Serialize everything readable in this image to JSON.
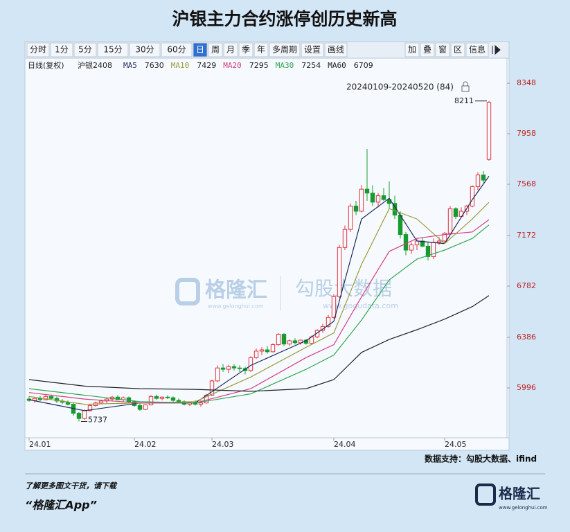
{
  "chart_data": {
    "type": "candlestick",
    "title": "沪银主力合约涨停创历史新高",
    "toolbar_left": [
      "分时",
      "1分",
      "5分",
      "15分",
      "30分",
      "60分",
      "日",
      "周",
      "月",
      "季",
      "年",
      "多周期",
      "设置",
      "画线"
    ],
    "toolbar_right": [
      "加",
      "叠",
      "窗",
      "区",
      "信息"
    ],
    "legend": [
      "日线(复权)",
      "沪银2408"
    ],
    "range_label": "20240109-20240520 (84)",
    "annotations": [
      {
        "label": "8211",
        "index": 83,
        "value": 8211
      },
      {
        "label": "5737",
        "index": 9,
        "value": 5737
      }
    ],
    "watermark": [
      "格隆汇",
      "www.gelonghui.com",
      "勾股大数据",
      "www.gogudata.com"
    ],
    "source": "数据支持：勾股大数据、ifind",
    "footer": [
      "了解更多图文干货，请下载",
      "“格隆汇App”"
    ],
    "logo": [
      "格隆汇",
      "www.gelonghui.com"
    ],
    "up_color": "#e0303a",
    "down_color": "#179a2e",
    "xlim": [
      -0.5,
      86.25
    ],
    "xticks": [
      {
        "value": 0,
        "label": "24.01"
      },
      {
        "value": 19,
        "label": "24.02"
      },
      {
        "value": 33,
        "label": "24.03"
      },
      {
        "value": 55,
        "label": "24.04"
      },
      {
        "value": 75,
        "label": "24.05"
      }
    ],
    "ylim": [
      5611,
      8520
    ],
    "yticks": [
      5996,
      6386,
      6782,
      7172,
      7568,
      7958,
      8348
    ],
    "candles": [
      [
        5910,
        5930,
        5890,
        5900
      ],
      [
        5900,
        5920,
        5880,
        5915
      ],
      [
        5915,
        5935,
        5895,
        5905
      ],
      [
        5905,
        5940,
        5900,
        5930
      ],
      [
        5930,
        5945,
        5905,
        5915
      ],
      [
        5915,
        5930,
        5880,
        5895
      ],
      [
        5895,
        5910,
        5870,
        5885
      ],
      [
        5885,
        5900,
        5860,
        5870
      ],
      [
        5870,
        5880,
        5780,
        5800
      ],
      [
        5800,
        5810,
        5737,
        5760
      ],
      [
        5760,
        5830,
        5750,
        5820
      ],
      [
        5820,
        5870,
        5815,
        5860
      ],
      [
        5860,
        5890,
        5850,
        5880
      ],
      [
        5880,
        5905,
        5870,
        5895
      ],
      [
        5895,
        5920,
        5880,
        5910
      ],
      [
        5910,
        5935,
        5895,
        5925
      ],
      [
        5925,
        5940,
        5900,
        5905
      ],
      [
        5905,
        5930,
        5890,
        5920
      ],
      [
        5920,
        5930,
        5880,
        5890
      ],
      [
        5890,
        5900,
        5850,
        5860
      ],
      [
        5860,
        5880,
        5820,
        5830
      ],
      [
        5830,
        5870,
        5825,
        5865
      ],
      [
        5865,
        5940,
        5860,
        5930
      ],
      [
        5930,
        5945,
        5905,
        5915
      ],
      [
        5915,
        5930,
        5900,
        5925
      ],
      [
        5925,
        5940,
        5910,
        5920
      ],
      [
        5920,
        5930,
        5890,
        5900
      ],
      [
        5900,
        5915,
        5880,
        5890
      ],
      [
        5890,
        5900,
        5860,
        5870
      ],
      [
        5870,
        5890,
        5855,
        5885
      ],
      [
        5885,
        5900,
        5860,
        5870
      ],
      [
        5870,
        5900,
        5850,
        5880
      ],
      [
        5880,
        5950,
        5875,
        5940
      ],
      [
        5940,
        6060,
        5935,
        6050
      ],
      [
        6050,
        6170,
        6040,
        6150
      ],
      [
        6150,
        6180,
        6120,
        6140
      ],
      [
        6140,
        6175,
        6110,
        6160
      ],
      [
        6160,
        6180,
        6130,
        6150
      ],
      [
        6150,
        6170,
        6120,
        6145
      ],
      [
        6145,
        6160,
        6100,
        6130
      ],
      [
        6130,
        6240,
        6120,
        6230
      ],
      [
        6230,
        6300,
        6220,
        6280
      ],
      [
        6280,
        6310,
        6250,
        6290
      ],
      [
        6290,
        6320,
        6260,
        6275
      ],
      [
        6275,
        6340,
        6270,
        6330
      ],
      [
        6330,
        6420,
        6320,
        6410
      ],
      [
        6410,
        6420,
        6320,
        6335
      ],
      [
        6335,
        6370,
        6320,
        6360
      ],
      [
        6360,
        6380,
        6330,
        6345
      ],
      [
        6345,
        6370,
        6330,
        6365
      ],
      [
        6365,
        6375,
        6330,
        6340
      ],
      [
        6340,
        6400,
        6330,
        6390
      ],
      [
        6390,
        6450,
        6380,
        6440
      ],
      [
        6440,
        6490,
        6420,
        6470
      ],
      [
        6470,
        6560,
        6460,
        6540
      ],
      [
        6540,
        6720,
        6530,
        6700
      ],
      [
        6700,
        7100,
        6690,
        7080
      ],
      [
        7080,
        7250,
        7060,
        7220
      ],
      [
        7220,
        7420,
        7200,
        7400
      ],
      [
        7400,
        7440,
        7330,
        7360
      ],
      [
        7360,
        7560,
        7350,
        7530
      ],
      [
        7530,
        7840,
        7440,
        7500
      ],
      [
        7500,
        7560,
        7400,
        7430
      ],
      [
        7430,
        7500,
        7390,
        7480
      ],
      [
        7480,
        7540,
        7440,
        7450
      ],
      [
        7450,
        7590,
        7380,
        7420
      ],
      [
        7420,
        7480,
        7300,
        7330
      ],
      [
        7330,
        7360,
        7150,
        7180
      ],
      [
        7180,
        7200,
        7020,
        7060
      ],
      [
        7060,
        7120,
        7030,
        7100
      ],
      [
        7100,
        7150,
        7060,
        7130
      ],
      [
        7130,
        7160,
        7080,
        7090
      ],
      [
        7090,
        7120,
        6980,
        7010
      ],
      [
        7010,
        7150,
        6990,
        7120
      ],
      [
        7120,
        7160,
        7100,
        7130
      ],
      [
        7130,
        7200,
        7110,
        7190
      ],
      [
        7190,
        7400,
        7180,
        7380
      ],
      [
        7380,
        7390,
        7300,
        7320
      ],
      [
        7320,
        7390,
        7310,
        7360
      ],
      [
        7360,
        7410,
        7330,
        7400
      ],
      [
        7400,
        7560,
        7390,
        7550
      ],
      [
        7550,
        7660,
        7520,
        7640
      ],
      [
        7640,
        7670,
        7580,
        7600
      ],
      [
        7760,
        8211,
        7750,
        8200
      ]
    ],
    "series": [
      {
        "name": "MA5",
        "color": "#1c2a5c",
        "x": [
          0,
          10,
          20,
          30,
          40,
          50,
          55,
          60,
          65,
          70,
          75,
          80,
          83
        ],
        "values": [
          5905,
          5820,
          5880,
          5880,
          6170,
          6360,
          6510,
          7300,
          7460,
          7130,
          7110,
          7450,
          7630
        ]
      },
      {
        "name": "MA10",
        "color": "#9a9a3a",
        "x": [
          0,
          10,
          20,
          30,
          40,
          50,
          55,
          60,
          65,
          70,
          75,
          80,
          83
        ],
        "values": [
          5930,
          5870,
          5880,
          5890,
          6080,
          6310,
          6420,
          6950,
          7380,
          7300,
          7110,
          7300,
          7429
        ]
      },
      {
        "name": "MA20",
        "color": "#d23c82",
        "x": [
          0,
          10,
          20,
          30,
          40,
          50,
          55,
          60,
          65,
          70,
          75,
          80,
          83
        ],
        "values": [
          5960,
          5910,
          5880,
          5880,
          5990,
          6230,
          6330,
          6700,
          7050,
          7150,
          7180,
          7200,
          7295
        ]
      },
      {
        "name": "MA30",
        "color": "#2fa64e",
        "x": [
          0,
          10,
          20,
          30,
          40,
          50,
          55,
          60,
          65,
          70,
          75,
          80,
          83
        ],
        "values": [
          5990,
          5940,
          5890,
          5880,
          5950,
          6140,
          6250,
          6520,
          6830,
          6990,
          7060,
          7150,
          7254
        ]
      },
      {
        "name": "MA60",
        "color": "#222222",
        "x": [
          0,
          10,
          20,
          30,
          40,
          50,
          55,
          60,
          65,
          70,
          75,
          80,
          83
        ],
        "values": [
          6060,
          6010,
          5990,
          5985,
          5970,
          5990,
          6060,
          6270,
          6370,
          6445,
          6527,
          6624,
          6709
        ]
      }
    ]
  }
}
